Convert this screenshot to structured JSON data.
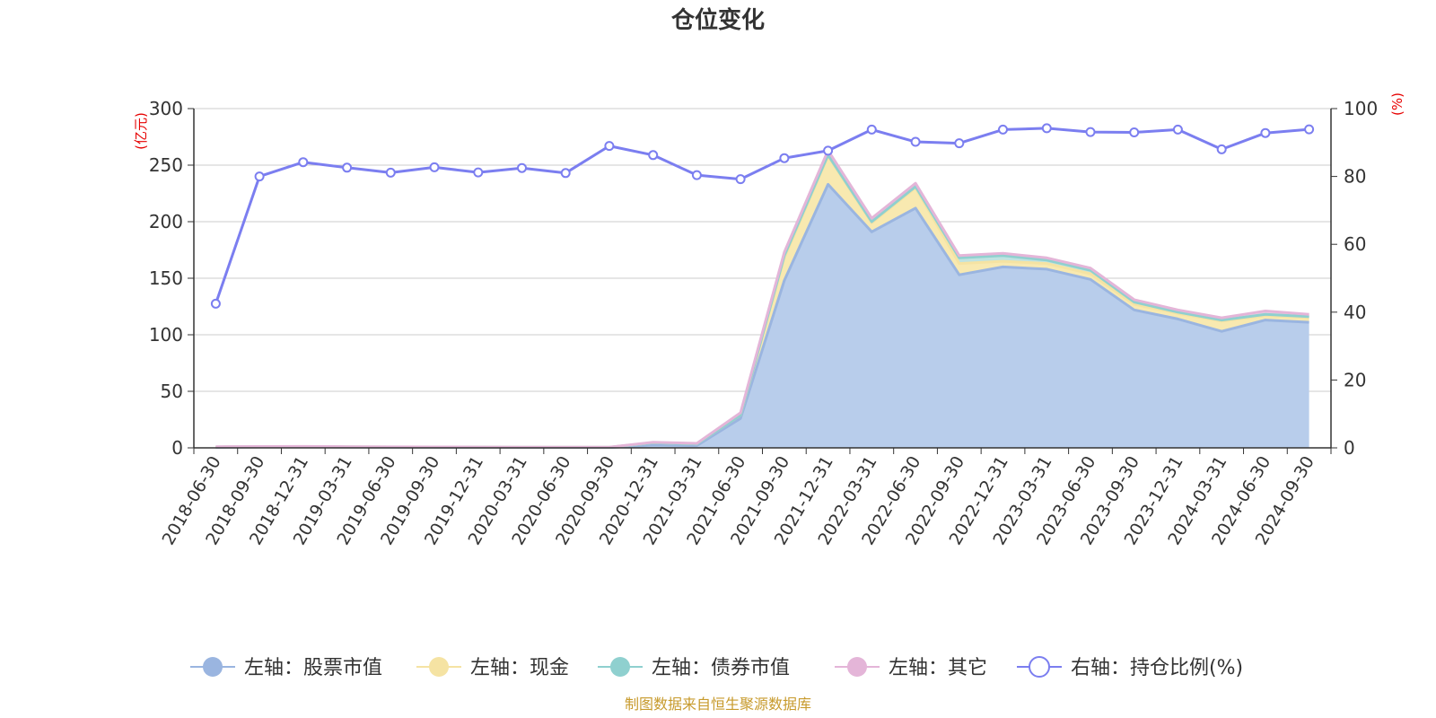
{
  "chart_data": {
    "type": "area",
    "title": "仓位变化",
    "left_unit": "(亿元)",
    "right_unit": "(%)",
    "ylim_left": [
      0,
      300
    ],
    "ylim_right": [
      0,
      100
    ],
    "left_ticks": [
      "0",
      "50",
      "100",
      "150",
      "200",
      "250",
      "300"
    ],
    "right_ticks": [
      "0",
      "20",
      "40",
      "60",
      "80",
      "100"
    ],
    "categories": [
      "2018-06-30",
      "2018-09-30",
      "2018-12-31",
      "2019-03-31",
      "2019-06-30",
      "2019-09-30",
      "2019-12-31",
      "2020-03-31",
      "2020-06-30",
      "2020-09-30",
      "2020-12-31",
      "2021-03-31",
      "2021-06-30",
      "2021-09-30",
      "2021-12-31",
      "2022-03-31",
      "2022-06-30",
      "2022-09-30",
      "2022-12-31",
      "2023-03-31",
      "2023-06-30",
      "2023-09-30",
      "2023-12-31",
      "2024-03-31",
      "2024-06-30",
      "2024-09-30"
    ],
    "series": [
      {
        "name": "左轴：股票市值",
        "axis": "left",
        "color": "#9ab5e0",
        "fill": "#b8cdeb",
        "values": [
          0.5,
          0.8,
          0.9,
          0.7,
          0.6,
          0.5,
          0.4,
          0.3,
          0.3,
          0.3,
          2.5,
          2.0,
          26,
          148,
          233,
          191,
          212,
          153,
          160,
          158,
          149,
          122,
          114,
          103,
          113,
          111
        ]
      },
      {
        "name": "左轴：现金",
        "axis": "left",
        "color": "#f5e3a3",
        "fill": "#f8e9b0",
        "values": [
          0.3,
          0.2,
          0.2,
          0.2,
          0.2,
          0.2,
          0.2,
          0.2,
          0.2,
          0.2,
          2.0,
          1.5,
          3,
          20,
          25,
          8,
          18,
          10,
          5,
          5,
          5,
          5,
          5,
          9,
          4,
          4
        ]
      },
      {
        "name": "左轴：债券市值",
        "axis": "left",
        "color": "#8fd0cf",
        "fill": "#bfe3e1",
        "values": [
          0,
          0,
          0,
          0,
          0,
          0,
          0,
          0,
          0,
          0,
          0,
          0,
          0,
          2,
          1,
          1,
          1,
          5,
          5,
          3,
          3,
          2,
          1,
          1,
          1,
          1
        ]
      },
      {
        "name": "左轴：其它",
        "axis": "left",
        "color": "#e4b5d8",
        "fill": "#edd0e4",
        "values": [
          0.2,
          0.2,
          0.2,
          0.1,
          0.1,
          0.1,
          0.1,
          0.1,
          0.1,
          0.1,
          0.5,
          0.5,
          2,
          3,
          4,
          3,
          3,
          2,
          2,
          2,
          2,
          2,
          2,
          2,
          3,
          2
        ]
      },
      {
        "name": "右轴：持仓比例(%)",
        "axis": "right",
        "color": "#7b7ef0",
        "values": [
          42.5,
          80.0,
          84.2,
          82.6,
          81.1,
          82.7,
          81.2,
          82.5,
          81.0,
          89.0,
          86.3,
          80.4,
          79.2,
          85.4,
          87.6,
          93.8,
          90.2,
          89.8,
          93.8,
          94.2,
          93.1,
          93.0,
          93.8,
          88.0,
          92.8,
          93.9
        ]
      }
    ],
    "legend_position": "bottom",
    "source_note": "制图数据来自恒生聚源数据库"
  }
}
